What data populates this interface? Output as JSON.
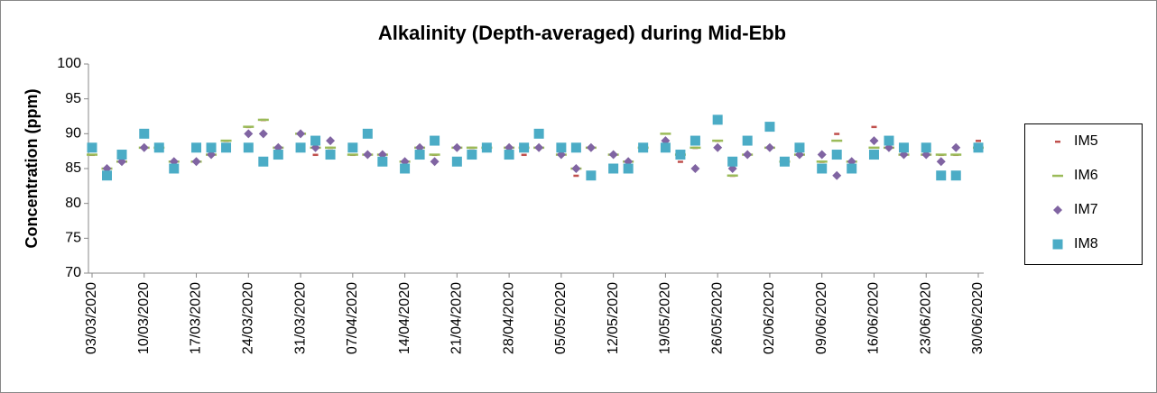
{
  "chart_data": {
    "type": "scatter",
    "title": "Alkalinity (Depth-averaged) during Mid-Ebb",
    "y_label": "Concentration (ppm)",
    "x": [
      "03/03/2020",
      "05/03/2020",
      "07/03/2020",
      "10/03/2020",
      "12/03/2020",
      "14/03/2020",
      "17/03/2020",
      "19/03/2020",
      "21/03/2020",
      "24/03/2020",
      "26/03/2020",
      "28/03/2020",
      "31/03/2020",
      "02/04/2020",
      "04/04/2020",
      "07/04/2020",
      "09/04/2020",
      "11/04/2020",
      "14/04/2020",
      "16/04/2020",
      "18/04/2020",
      "21/04/2020",
      "23/04/2020",
      "25/04/2020",
      "28/04/2020",
      "30/04/2020",
      "02/05/2020",
      "05/05/2020",
      "07/05/2020",
      "09/05/2020",
      "12/05/2020",
      "14/05/2020",
      "16/05/2020",
      "19/05/2020",
      "21/05/2020",
      "23/05/2020",
      "26/05/2020",
      "28/05/2020",
      "30/05/2020",
      "02/06/2020",
      "04/06/2020",
      "06/06/2020",
      "09/06/2020",
      "11/06/2020",
      "13/06/2020",
      "16/06/2020",
      "18/06/2020",
      "20/06/2020",
      "23/06/2020",
      "25/06/2020",
      "27/06/2020",
      "30/06/2020"
    ],
    "series": [
      {
        "name": "IM5",
        "color": "#c0504d",
        "marker": "dash",
        "values": [
          87,
          85,
          86,
          88,
          88,
          86,
          86,
          87,
          89,
          91,
          92,
          88,
          90,
          87,
          88,
          87,
          87,
          87,
          86,
          88,
          87,
          88,
          88,
          88,
          88,
          87,
          88,
          87,
          84,
          88,
          87,
          86,
          88,
          89,
          86,
          88,
          89,
          84,
          87,
          88,
          86,
          87,
          86,
          90,
          86,
          91,
          88,
          87,
          87,
          87,
          87,
          89
        ]
      },
      {
        "name": "IM6",
        "color": "#9bbb59",
        "marker": "wide-dash",
        "values": [
          87,
          85,
          86,
          88,
          88,
          86,
          86,
          87,
          89,
          91,
          92,
          88,
          90,
          88,
          88,
          87,
          87,
          87,
          86,
          88,
          87,
          88,
          88,
          88,
          88,
          88,
          88,
          87,
          85,
          88,
          87,
          86,
          88,
          90,
          87,
          88,
          89,
          84,
          87,
          88,
          86,
          87,
          86,
          89,
          86,
          88,
          88,
          87,
          87,
          87,
          87,
          88
        ]
      },
      {
        "name": "IM7",
        "color": "#8064a2",
        "marker": "diamond",
        "values": [
          88,
          85,
          86,
          88,
          88,
          86,
          86,
          87,
          88,
          90,
          90,
          88,
          90,
          88,
          89,
          88,
          87,
          87,
          86,
          88,
          86,
          88,
          87,
          88,
          88,
          88,
          88,
          87,
          85,
          88,
          87,
          86,
          88,
          89,
          87,
          85,
          88,
          85,
          87,
          88,
          86,
          87,
          87,
          84,
          86,
          89,
          88,
          87,
          87,
          86,
          88,
          88
        ]
      },
      {
        "name": "IM8",
        "color": "#4bacc6",
        "marker": "square",
        "values": [
          88,
          84,
          87,
          90,
          88,
          85,
          88,
          88,
          88,
          88,
          86,
          87,
          88,
          89,
          87,
          88,
          90,
          86,
          85,
          87,
          89,
          86,
          87,
          88,
          87,
          88,
          90,
          88,
          88,
          84,
          85,
          85,
          88,
          88,
          87,
          89,
          92,
          86,
          89,
          91,
          86,
          88,
          85,
          87,
          85,
          87,
          89,
          88,
          88,
          84,
          84,
          88
        ]
      }
    ],
    "xlim": [
      "03/03/2020",
      "30/06/2020"
    ],
    "xticks": [
      "03/03/2020",
      "10/03/2020",
      "17/03/2020",
      "24/03/2020",
      "31/03/2020",
      "07/04/2020",
      "14/04/2020",
      "21/04/2020",
      "28/04/2020",
      "05/05/2020",
      "12/05/2020",
      "19/05/2020",
      "26/05/2020",
      "02/06/2020",
      "09/06/2020",
      "16/06/2020",
      "23/06/2020",
      "30/06/2020"
    ],
    "ylim": [
      70,
      100
    ],
    "yticks": [
      70,
      75,
      80,
      85,
      90,
      95,
      100
    ],
    "grid": false,
    "legend": "right"
  }
}
